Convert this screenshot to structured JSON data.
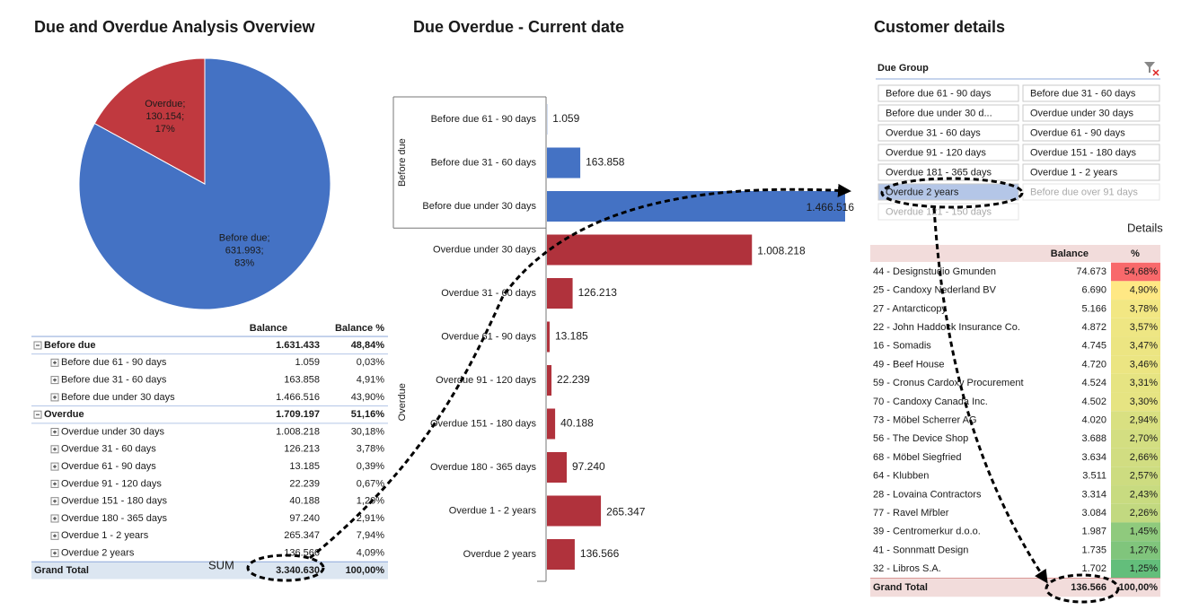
{
  "titles": {
    "overview": "Due and Overdue Analysis Overview",
    "bars": "Due Overdue  - Current date",
    "customers": "Customer details"
  },
  "chart_data": [
    {
      "type": "pie",
      "categories": [
        "Before due;",
        "Overdue;"
      ],
      "amount_labels": [
        "631.993;",
        "130.154;"
      ],
      "values": [
        83,
        17
      ],
      "value_labels": [
        "83%",
        "17%"
      ],
      "colors": [
        "#4472c4",
        "#c0393f"
      ]
    },
    {
      "type": "bar",
      "orientation": "horizontal",
      "groups": [
        {
          "name": "Before due",
          "color": "#4472c4",
          "categories": [
            "Before due 61 - 90 days",
            "Before due 31 - 60 days",
            "Before due under 30 days"
          ],
          "values": [
            1059,
            163858,
            1466516
          ],
          "value_labels": [
            "1.059",
            "163.858",
            "1.466.516"
          ]
        },
        {
          "name": "Overdue",
          "color": "#b0323c",
          "categories": [
            "Overdue under 30 days",
            "Overdue 31 - 60 days",
            "Overdue 61 - 90 days",
            "Overdue 91 - 120 days",
            "Overdue 151 - 180 days",
            "Overdue 180 - 365 days",
            "Overdue 1 - 2 years",
            "Overdue 2 years"
          ],
          "values": [
            1008218,
            126213,
            13185,
            22239,
            40188,
            97240,
            265347,
            136566
          ],
          "value_labels": [
            "1.008.218",
            "126.213",
            "13.185",
            "22.239",
            "40.188",
            "97.240",
            "265.347",
            "136.566"
          ]
        }
      ]
    }
  ],
  "overview_table": {
    "columns": [
      "Balance",
      "Balance %"
    ],
    "groups": [
      {
        "label": "Before due",
        "balance": "1.631.433",
        "pct": "48,84%",
        "children": [
          {
            "label": "Before due 61 - 90 days",
            "balance": "1.059",
            "pct": "0,03%"
          },
          {
            "label": "Before due 31 - 60 days",
            "balance": "163.858",
            "pct": "4,91%"
          },
          {
            "label": "Before due under 30 days",
            "balance": "1.466.516",
            "pct": "43,90%"
          }
        ]
      },
      {
        "label": "Overdue",
        "balance": "1.709.197",
        "pct": "51,16%",
        "children": [
          {
            "label": "Overdue under 30 days",
            "balance": "1.008.218",
            "pct": "30,18%"
          },
          {
            "label": "Overdue 31 - 60 days",
            "balance": "126.213",
            "pct": "3,78%"
          },
          {
            "label": "Overdue 61 - 90 days",
            "balance": "13.185",
            "pct": "0,39%"
          },
          {
            "label": "Overdue 91 - 120 days",
            "balance": "22.239",
            "pct": "0,67%"
          },
          {
            "label": "Overdue 151 - 180 days",
            "balance": "40.188",
            "pct": "1,20%"
          },
          {
            "label": "Overdue 180 - 365 days",
            "balance": "97.240",
            "pct": "2,91%"
          },
          {
            "label": "Overdue 1 - 2 years",
            "balance": "265.347",
            "pct": "7,94%"
          },
          {
            "label": "Overdue 2 years",
            "balance": "136.566",
            "pct": "4,09%"
          }
        ]
      }
    ],
    "total": {
      "label": "Grand Total",
      "balance": "3.340.630",
      "pct": "100,00%"
    }
  },
  "annotation": "SUM",
  "customer_details": {
    "slicer": {
      "title": "Due Group",
      "items": [
        {
          "label": "Before due 61 - 90 days",
          "state": "available"
        },
        {
          "label": "Before due 31 - 60 days",
          "state": "available"
        },
        {
          "label": "Before due under 30 d...",
          "state": "available"
        },
        {
          "label": "Overdue under 30 days",
          "state": "available"
        },
        {
          "label": "Overdue 31 - 60 days",
          "state": "available"
        },
        {
          "label": "Overdue 61 - 90 days",
          "state": "available"
        },
        {
          "label": "Overdue 91 - 120 days",
          "state": "available"
        },
        {
          "label": "Overdue 151 - 180 days",
          "state": "available"
        },
        {
          "label": "Overdue 181 - 365 days",
          "state": "available"
        },
        {
          "label": "Overdue 1 - 2 years",
          "state": "available"
        },
        {
          "label": "Overdue 2 years",
          "state": "selected"
        },
        {
          "label": "Before due over 91 days",
          "state": "no-data"
        },
        {
          "label": "Overdue 121 - 150 days",
          "state": "no-data"
        }
      ]
    },
    "details_label": "Details",
    "columns": [
      "Balance",
      "%"
    ],
    "rows": [
      {
        "name": "44 - Designstudio Gmunden",
        "balance": "74.673",
        "pct": "54,68%",
        "color": "#f8696b"
      },
      {
        "name": "25 - Candoxy Nederland BV",
        "balance": "6.690",
        "pct": "4,90%",
        "color": "#ffe884"
      },
      {
        "name": "27 - Antarcticopy",
        "balance": "5.166",
        "pct": "3,78%",
        "color": "#f2e783"
      },
      {
        "name": "22 - John Haddock Insurance Co.",
        "balance": "4.872",
        "pct": "3,57%",
        "color": "#eee683"
      },
      {
        "name": "16 - Somadis",
        "balance": "4.745",
        "pct": "3,47%",
        "color": "#ece582"
      },
      {
        "name": "49 - Beef House",
        "balance": "4.720",
        "pct": "3,46%",
        "color": "#ebe582"
      },
      {
        "name": "59 - Cronus Cardoxy Procurement",
        "balance": "4.524",
        "pct": "3,31%",
        "color": "#e6e482"
      },
      {
        "name": "70 - Candoxy Canada Inc.",
        "balance": "4.502",
        "pct": "3,30%",
        "color": "#e6e482"
      },
      {
        "name": "73 - Möbel Scherrer AG",
        "balance": "4.020",
        "pct": "2,94%",
        "color": "#d9e081"
      },
      {
        "name": "56 - The Device Shop",
        "balance": "3.688",
        "pct": "2,70%",
        "color": "#d3de81"
      },
      {
        "name": "68 - Möbel Siegfried",
        "balance": "3.634",
        "pct": "2,66%",
        "color": "#d1dd81"
      },
      {
        "name": "64 - Klubben",
        "balance": "3.511",
        "pct": "2,57%",
        "color": "#cddc80"
      },
      {
        "name": "28 - Lovaina Contractors",
        "balance": "3.314",
        "pct": "2,43%",
        "color": "#c8db80"
      },
      {
        "name": "77 - Ravel Mřbler",
        "balance": "3.084",
        "pct": "2,26%",
        "color": "#c2d980"
      },
      {
        "name": "39 - Centromerkur d.o.o.",
        "balance": "1.987",
        "pct": "1,45%",
        "color": "#8fca7d"
      },
      {
        "name": "41 - Sonnmatt Design",
        "balance": "1.735",
        "pct": "1,27%",
        "color": "#80c57c"
      },
      {
        "name": "32 - Libros S.A.",
        "balance": "1.702",
        "pct": "1,25%",
        "color": "#63be7b"
      }
    ],
    "total": {
      "label": "Grand Total",
      "balance": "136.566",
      "pct": "100,00%"
    }
  }
}
